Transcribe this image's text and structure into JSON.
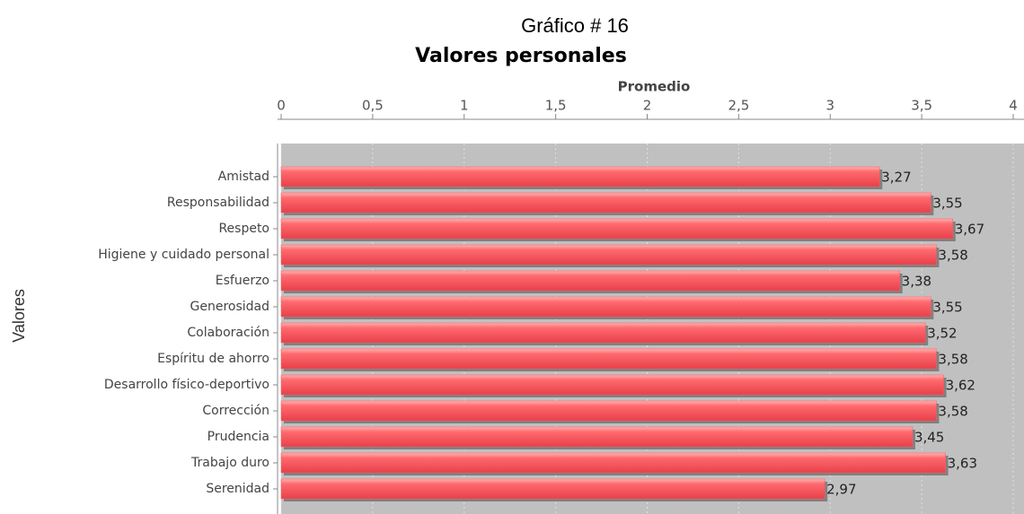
{
  "chart_data": {
    "type": "hbar",
    "title": "Gráfico # 16",
    "subtitle": "Valores personales",
    "xlabel": "Promedio",
    "ylabel": "Valores",
    "categories": [
      "Amistad",
      "Responsabilidad",
      "Respeto",
      "Higiene y cuidado personal",
      "Esfuerzo",
      "Generosidad",
      "Colaboración",
      "Espíritu de ahorro",
      "Desarrollo físico-deportivo",
      "Corrección",
      "Prudencia",
      "Trabajo duro",
      "Serenidad"
    ],
    "values": [
      3.27,
      3.55,
      3.67,
      3.58,
      3.38,
      3.55,
      3.52,
      3.58,
      3.62,
      3.58,
      3.45,
      3.63,
      2.97
    ],
    "value_labels": [
      "3,27",
      "3,55",
      "3,67",
      "3,58",
      "3,38",
      "3,55",
      "3,52",
      "3,58",
      "3,62",
      "3,58",
      "3,45",
      "3,63",
      "2,97"
    ],
    "color": "#ff5a5f",
    "xlim": [
      0,
      4
    ],
    "xticks": [
      0,
      {
        "value": 0.5,
        "label": "0,5"
      },
      1,
      {
        "value": 1.5,
        "label": "1,5"
      },
      2,
      {
        "value": 2.5,
        "label": "2,5"
      },
      3,
      {
        "value": 3.5,
        "label": "3,5"
      },
      4
    ],
    "grid": true
  }
}
